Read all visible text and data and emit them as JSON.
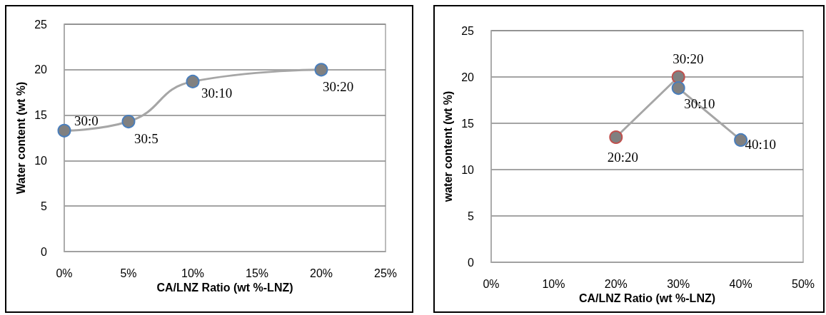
{
  "chart_data": [
    {
      "type": "line",
      "xlabel": "CA/LNZ Ratio (wt %-LNZ)",
      "ylabel": "Water content (wt %)",
      "series": [
        {
          "color": "#4a7ebb",
          "x": [
            0,
            5,
            10,
            20
          ],
          "values": [
            13.3,
            14.3,
            18.7,
            20.0
          ]
        }
      ],
      "xlim": [
        0,
        25
      ],
      "xticks": [
        {
          "value": 0,
          "label": "0%"
        },
        {
          "value": 5,
          "label": "5%"
        },
        {
          "value": 10,
          "label": "10%"
        },
        {
          "value": 15,
          "label": "15%"
        },
        {
          "value": 20,
          "label": "20%"
        },
        {
          "value": 25,
          "label": "25%"
        }
      ],
      "ylim": [
        0,
        25
      ],
      "yticks": [
        0,
        5,
        10,
        15,
        20,
        25
      ],
      "grid": "y",
      "marker": "circle",
      "line_style": "solid",
      "annotations": [
        {
          "text": "30:0",
          "x": 0,
          "y": 13.3
        },
        {
          "text": "30:5",
          "x": 5,
          "y": 14.3
        },
        {
          "text": "30:10",
          "x": 10,
          "y": 18.7
        },
        {
          "text": "30:20",
          "x": 20,
          "y": 20.0
        }
      ]
    },
    {
      "type": "line",
      "xlabel": "CA/LNZ Ratio (wt %-LNZ)",
      "ylabel": "water content (wt %)",
      "series": [
        {
          "color": "#c0504d",
          "x": [
            20,
            30
          ],
          "values": [
            13.5,
            20.0
          ]
        },
        {
          "color": "#4a7ebb",
          "x": [
            30,
            40
          ],
          "values": [
            18.8,
            13.2
          ]
        }
      ],
      "xlim": [
        0,
        50
      ],
      "xticks": [
        {
          "value": 0,
          "label": "0%"
        },
        {
          "value": 10,
          "label": "10%"
        },
        {
          "value": 20,
          "label": "20%"
        },
        {
          "value": 30,
          "label": "30%"
        },
        {
          "value": 40,
          "label": "40%"
        },
        {
          "value": 50,
          "label": "50%"
        }
      ],
      "ylim": [
        0,
        25
      ],
      "yticks": [
        0,
        5,
        10,
        15,
        20,
        25
      ],
      "grid": "y",
      "marker": "circle",
      "line_style": "solid",
      "annotations": [
        {
          "text": "20:20",
          "x": 20,
          "y": 13.5
        },
        {
          "text": "30:20",
          "x": 30,
          "y": 20.0
        },
        {
          "text": "30:10",
          "x": 30,
          "y": 18.8
        },
        {
          "text": "40:10",
          "x": 40,
          "y": 13.2
        }
      ]
    }
  ]
}
